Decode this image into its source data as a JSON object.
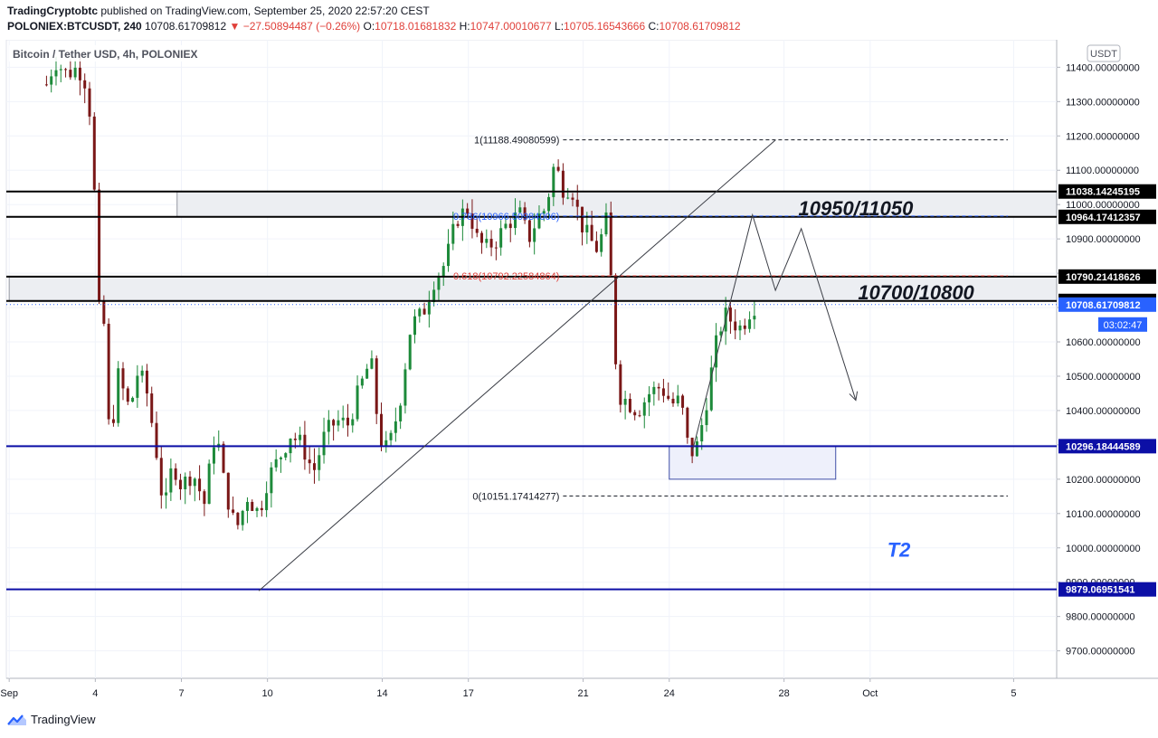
{
  "header": {
    "publisher": "TradingCryptobtc",
    "published_text": "published on TradingView.com, September 25, 2020 22:57:20 CEST",
    "symbol": "POLONIEX:BTCUSDT, 240",
    "last": "10708.61709812",
    "change": "▼ −27.50894487 (−0.26%)",
    "o_label": "O:",
    "o_value": "10718.01681832",
    "h_label": "H:",
    "h_value": "10747.00010677",
    "l_label": "L:",
    "l_value": "10705.16543666",
    "c_label": "C:",
    "c_value": "10708.61709812"
  },
  "footer": {
    "brand": "TradingView"
  },
  "chart_data": {
    "type": "candlestick",
    "title": "Bitcoin / Tether USD, 4h, POLONIEX",
    "currency_label": "USDT",
    "ylim": [
      9620,
      11480
    ],
    "y_ticks": [
      9700,
      9800,
      9900,
      10000,
      10100,
      10200,
      10300,
      10400,
      10500,
      10600,
      10700,
      10800,
      10900,
      11000,
      11100,
      11200,
      11300,
      11400
    ],
    "y_tick_labels": [
      "9700.00000000",
      "9800.00000000",
      "9900.00000000",
      "10000.00000000",
      "10100.00000000",
      "10200.00000000",
      "10300.00000000",
      "10400.00000000",
      "10500.00000000",
      "10600.00000000",
      "10700.00000000",
      "10800.00000000",
      "10900.00000000",
      "11000.00000000",
      "11100.00000000",
      "11200.00000000",
      "11300.00000000",
      "11400.00000000"
    ],
    "x_tick_labels": [
      {
        "label": "Sep",
        "day": 0.0
      },
      {
        "label": "4",
        "day": 3.0
      },
      {
        "label": "7",
        "day": 6.0
      },
      {
        "label": "10",
        "day": 9.0
      },
      {
        "label": "14",
        "day": 13.0
      },
      {
        "label": "17",
        "day": 16.0
      },
      {
        "label": "21",
        "day": 20.0
      },
      {
        "label": "24",
        "day": 23.0
      },
      {
        "label": "28",
        "day": 27.0
      },
      {
        "label": "Oct",
        "day": 30.0
      },
      {
        "label": "5",
        "day": 35.0
      }
    ],
    "x_range_days": [
      -0.1,
      36.5
    ],
    "candle_anchors": [
      [
        1.3,
        11350
      ],
      [
        1.6,
        11420
      ],
      [
        2.0,
        11380
      ],
      [
        2.4,
        11400
      ],
      [
        2.7,
        11350
      ],
      [
        2.9,
        11200
      ],
      [
        3.1,
        10700
      ],
      [
        3.3,
        10650
      ],
      [
        3.5,
        10300
      ],
      [
        3.8,
        10500
      ],
      [
        4.2,
        10400
      ],
      [
        4.5,
        10520
      ],
      [
        4.8,
        10450
      ],
      [
        5.1,
        10300
      ],
      [
        5.4,
        10100
      ],
      [
        5.7,
        10250
      ],
      [
        6.0,
        10180
      ],
      [
        6.4,
        10220
      ],
      [
        6.8,
        10130
      ],
      [
        7.2,
        10350
      ],
      [
        7.5,
        10180
      ],
      [
        7.9,
        10050
      ],
      [
        8.3,
        10150
      ],
      [
        8.7,
        10100
      ],
      [
        9.0,
        10200
      ],
      [
        9.4,
        10260
      ],
      [
        9.8,
        10330
      ],
      [
        10.2,
        10300
      ],
      [
        10.6,
        10220
      ],
      [
        11.0,
        10330
      ],
      [
        11.4,
        10370
      ],
      [
        11.8,
        10360
      ],
      [
        12.2,
        10460
      ],
      [
        12.6,
        10550
      ],
      [
        12.9,
        10320
      ],
      [
        13.2,
        10280
      ],
      [
        13.6,
        10420
      ],
      [
        14.0,
        10650
      ],
      [
        14.4,
        10680
      ],
      [
        14.8,
        10780
      ],
      [
        15.2,
        10830
      ],
      [
        15.6,
        10960
      ],
      [
        16.0,
        10990
      ],
      [
        16.3,
        10900
      ],
      [
        16.6,
        10870
      ],
      [
        17.0,
        10900
      ],
      [
        17.4,
        10950
      ],
      [
        17.8,
        10970
      ],
      [
        18.1,
        10900
      ],
      [
        18.4,
        10960
      ],
      [
        18.7,
        10990
      ],
      [
        19.0,
        11120
      ],
      [
        19.3,
        11050
      ],
      [
        19.6,
        11050
      ],
      [
        19.9,
        10950
      ],
      [
        20.2,
        10900
      ],
      [
        20.5,
        10870
      ],
      [
        20.8,
        10950
      ],
      [
        21.0,
        10750
      ],
      [
        21.2,
        10450
      ],
      [
        21.5,
        10430
      ],
      [
        21.9,
        10400
      ],
      [
        22.3,
        10450
      ],
      [
        22.7,
        10470
      ],
      [
        23.1,
        10420
      ],
      [
        23.4,
        10430
      ],
      [
        23.7,
        10270
      ],
      [
        24.0,
        10300
      ],
      [
        24.3,
        10430
      ],
      [
        24.6,
        10580
      ],
      [
        24.9,
        10680
      ],
      [
        25.2,
        10660
      ],
      [
        25.5,
        10640
      ],
      [
        25.8,
        10690
      ],
      [
        26.0,
        10709
      ]
    ],
    "horizontal_levels": [
      {
        "value": 11038.14245195,
        "label": "11038.14245195",
        "color": "#000000"
      },
      {
        "value": 10964.17412357,
        "label": "10964.17412357",
        "color": "#000000"
      },
      {
        "value": 10790.21418626,
        "label": "10790.21418626",
        "color": "#000000"
      },
      {
        "value": 10719.21590022,
        "label": "10719.21590022",
        "color": "#000000"
      },
      {
        "value": 10296.18444589,
        "label": "10296.18444589",
        "color": "#0c0fa6"
      },
      {
        "value": 9879.06951541,
        "label": "9879.06951541",
        "color": "#0c0fa6"
      }
    ],
    "last_price": {
      "value": 10708.61709812,
      "label": "10708.61709812",
      "countdown": "03:02:47",
      "color": "#2962ff"
    },
    "zones": [
      {
        "label": "10950/11050",
        "top": 11038.14,
        "bottom": 10964.17,
        "x_start_day": 5.85
      },
      {
        "label": "10700/10800",
        "top": 10790.21,
        "bottom": 10719.22,
        "x_start_day": 0.0
      }
    ],
    "demand_box": {
      "top": 10296,
      "bottom": 10200,
      "x_start_day": 23.0,
      "x_end_day": 28.8
    },
    "fibonacci": [
      {
        "label": "1(11188.49080599)",
        "value": 11188.4908,
        "color": "#131722"
      },
      {
        "label": "0.786(10966.50984006)",
        "value": 10966.51,
        "color": "#2962ff"
      },
      {
        "label": "0.618(10792.22584864)",
        "value": 10792.23,
        "color": "#e0403a"
      },
      {
        "label": "0(10151.17414277)",
        "value": 10151.17,
        "color": "#131722"
      }
    ],
    "trendline": {
      "from": [
        8.7,
        9875
      ],
      "to": [
        26.7,
        11188
      ]
    },
    "projection_path": [
      [
        23.8,
        10280
      ],
      [
        25.9,
        10970
      ],
      [
        26.7,
        10750
      ],
      [
        27.6,
        10930
      ],
      [
        29.5,
        10430
      ]
    ],
    "annotation_t2": "T2",
    "colors": {
      "up": "#26a69a",
      "down": "#8b1a1a",
      "up_fill": "#1d8a3a",
      "down_fill": "#7a1717",
      "grid": "#f0f3fa",
      "axis_text": "#131722"
    }
  }
}
